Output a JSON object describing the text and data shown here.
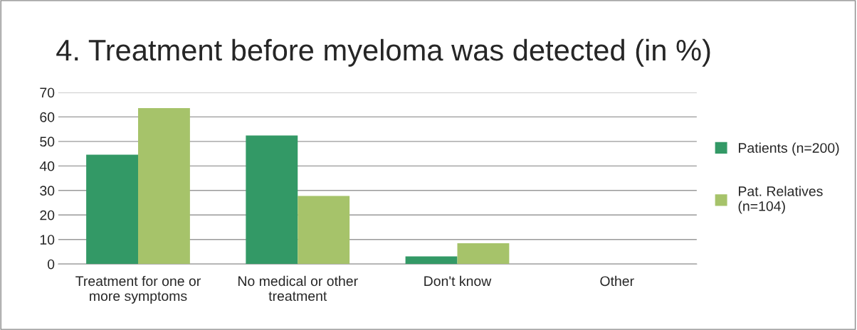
{
  "chart_data": {
    "type": "bar",
    "title": "4. Treatment before myeloma was detected (in %)",
    "categories": [
      "Treatment for one or more symptoms",
      "No medical or other treatment",
      "Don't know",
      "Other"
    ],
    "series": [
      {
        "name": "Patients (n=200)",
        "color": "#339966",
        "values": [
          44.6,
          52.4,
          3.1,
          null
        ]
      },
      {
        "name": "Pat. Relatives (n=104)",
        "color": "#a6c36a",
        "values": [
          63.6,
          27.8,
          8.5,
          null
        ]
      }
    ],
    "ylim": [
      0,
      70
    ],
    "yticks": [
      0,
      10,
      20,
      30,
      40,
      50,
      60,
      70
    ],
    "grid": "y",
    "legend": "right"
  }
}
